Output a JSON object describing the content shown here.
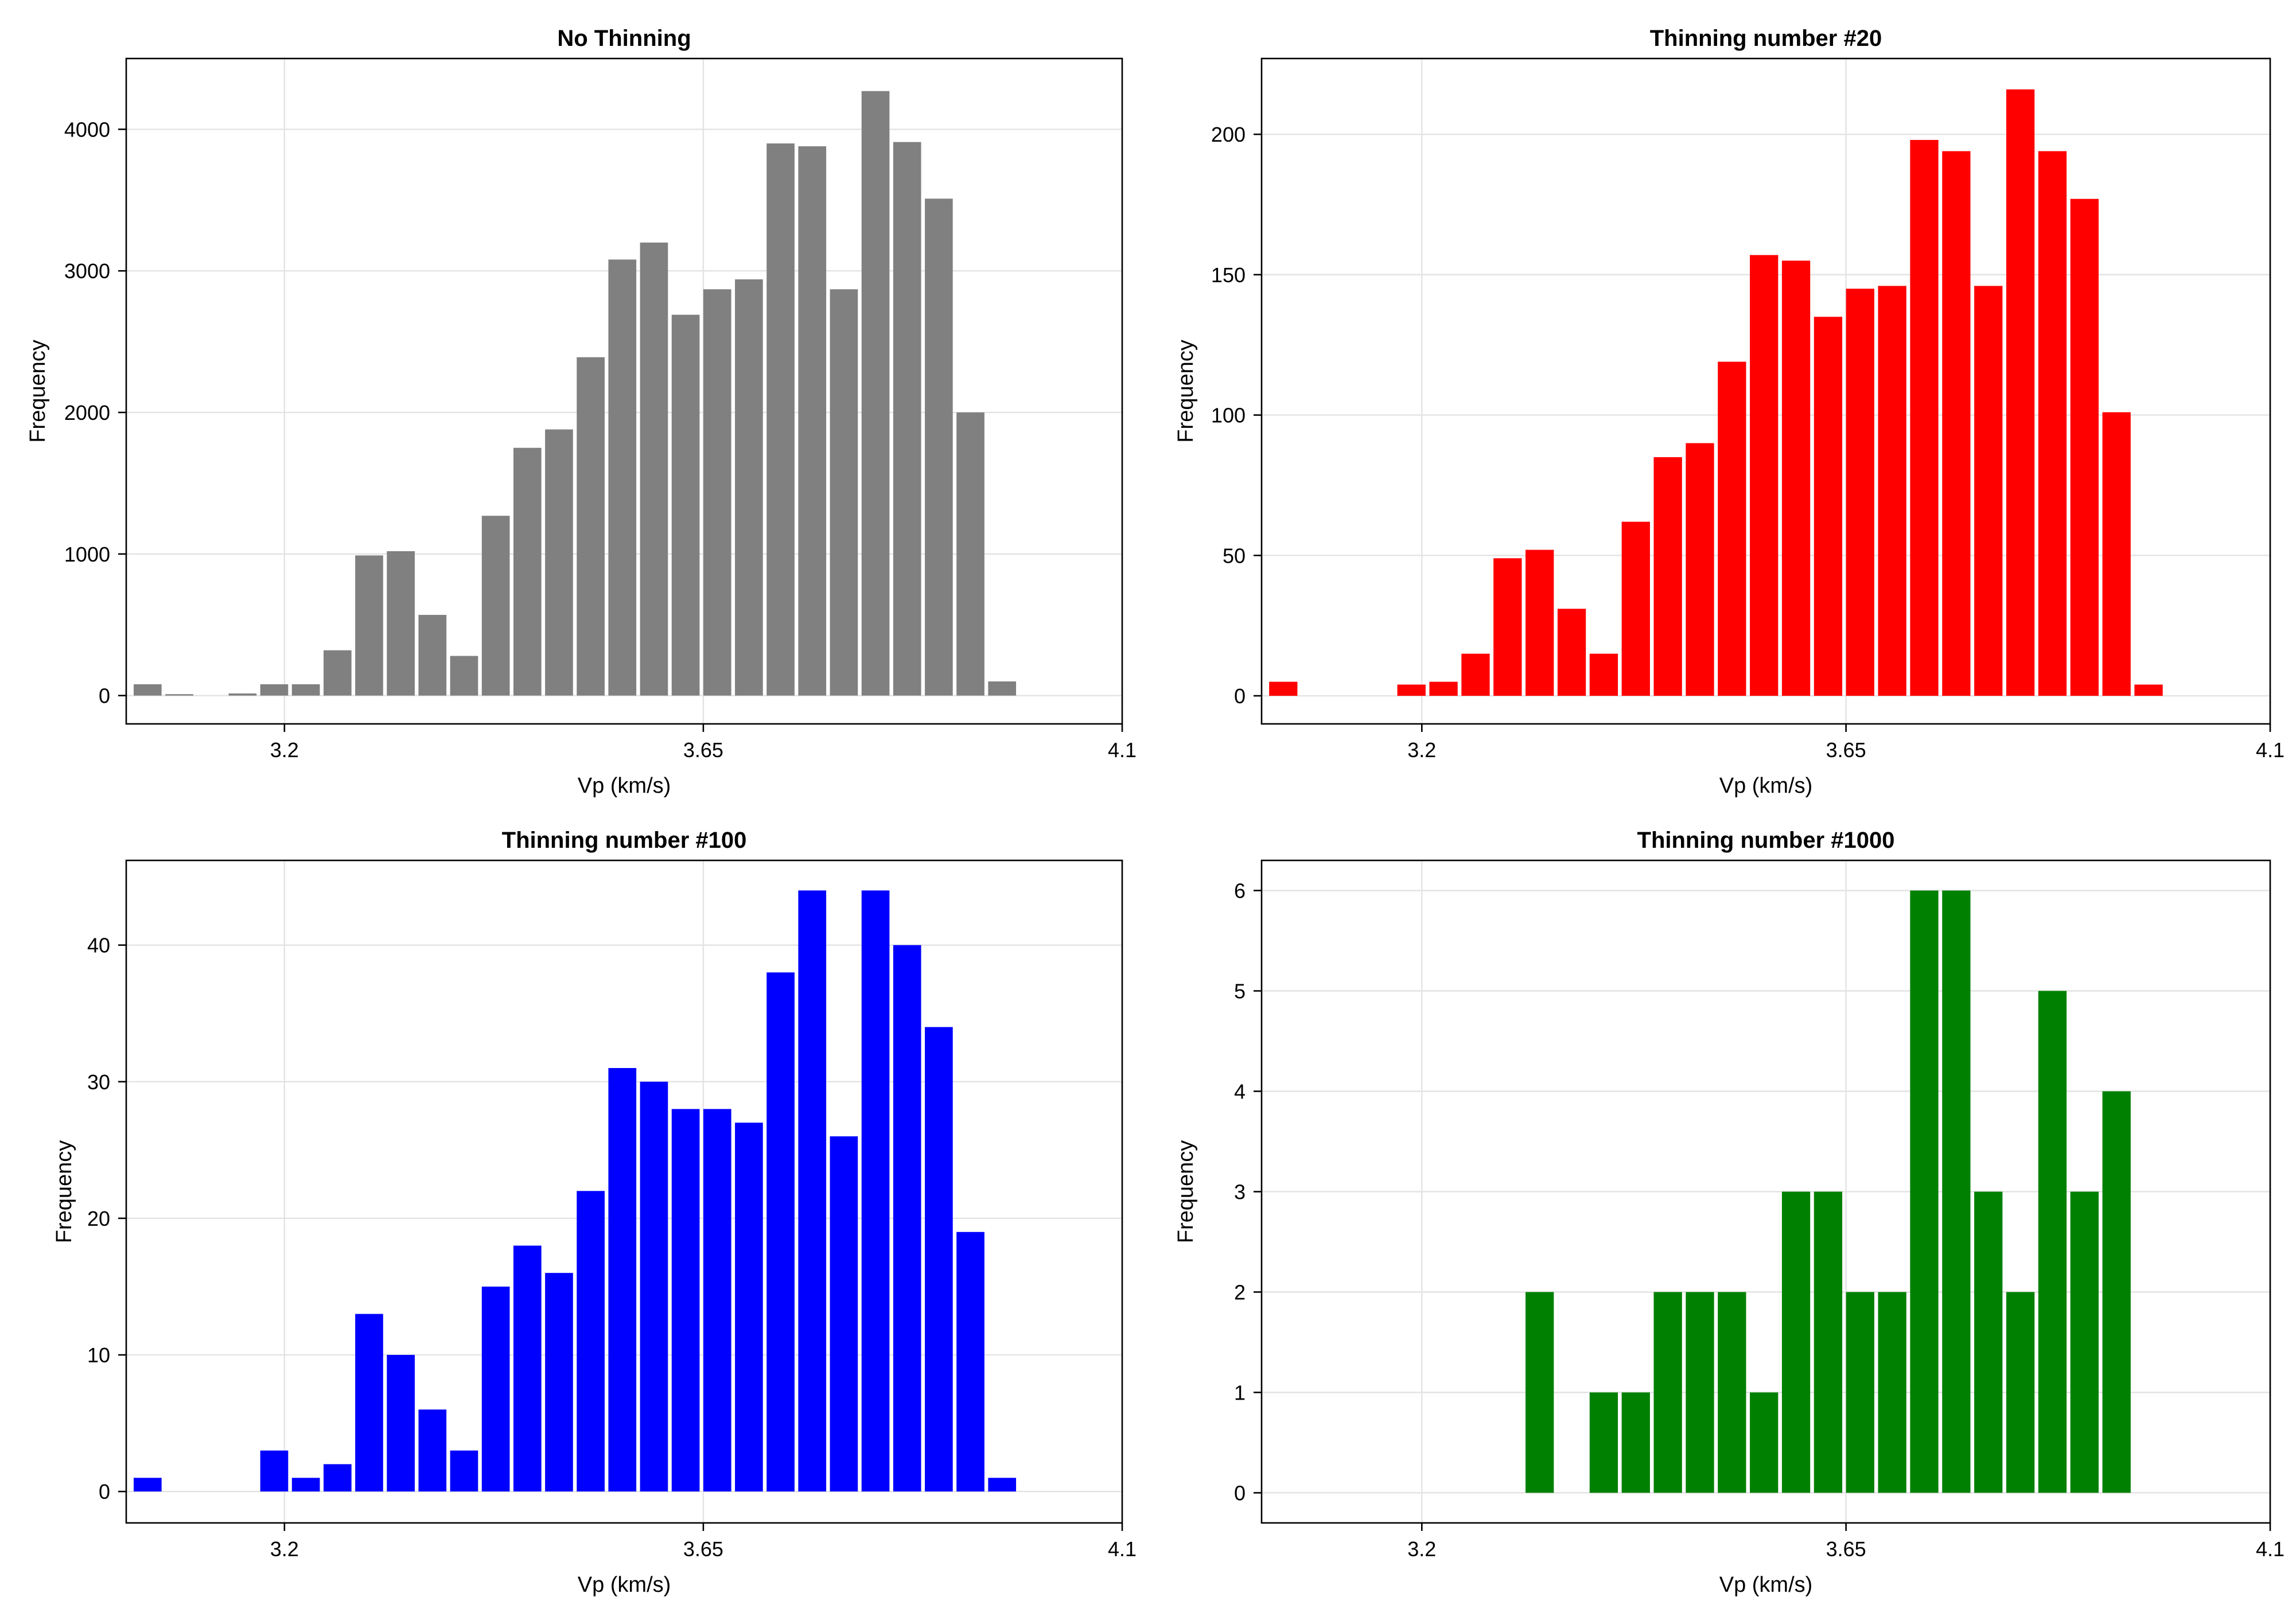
{
  "chart_data": [
    {
      "type": "bar",
      "title": "No Thinning",
      "xlabel": "Vp (km/s)",
      "ylabel": "Frequency",
      "color": "#808080",
      "xlim": [
        3.03,
        4.1
      ],
      "ylim": [
        -200,
        4500
      ],
      "xticks": [
        3.2,
        3.65,
        4.1
      ],
      "xtick_labels": [
        "3.2",
        "3.65",
        "4.1"
      ],
      "yticks": [
        0,
        1000,
        2000,
        3000,
        4000
      ],
      "ytick_labels": [
        "0",
        "1000",
        "2000",
        "3000",
        "4000"
      ],
      "x": [
        3.053,
        3.087,
        3.121,
        3.155,
        3.189,
        3.223,
        3.257,
        3.291,
        3.325,
        3.359,
        3.393,
        3.427,
        3.461,
        3.495,
        3.529,
        3.563,
        3.597,
        3.631,
        3.665,
        3.699,
        3.733,
        3.767,
        3.801,
        3.835,
        3.869,
        3.903,
        3.937,
        3.971,
        4.005,
        4.039
      ],
      "values": [
        80,
        10,
        0,
        15,
        80,
        80,
        320,
        990,
        1020,
        570,
        280,
        1270,
        1750,
        1880,
        2390,
        3080,
        3200,
        2690,
        2870,
        2940,
        3900,
        3880,
        2870,
        4270,
        3910,
        3510,
        2000,
        100,
        0,
        0
      ]
    },
    {
      "type": "bar",
      "title": "Thinning number #20",
      "xlabel": "Vp (km/s)",
      "ylabel": "Frequency",
      "color": "#ff0000",
      "xlim": [
        3.03,
        4.1
      ],
      "ylim": [
        -10,
        227
      ],
      "xticks": [
        3.2,
        3.65,
        4.1
      ],
      "xtick_labels": [
        "3.2",
        "3.65",
        "4.1"
      ],
      "yticks": [
        0,
        50,
        100,
        150,
        200
      ],
      "ytick_labels": [
        "0",
        "50",
        "100",
        "150",
        "200"
      ],
      "x": [
        3.053,
        3.087,
        3.121,
        3.155,
        3.189,
        3.223,
        3.257,
        3.291,
        3.325,
        3.359,
        3.393,
        3.427,
        3.461,
        3.495,
        3.529,
        3.563,
        3.597,
        3.631,
        3.665,
        3.699,
        3.733,
        3.767,
        3.801,
        3.835,
        3.869,
        3.903,
        3.937,
        3.971,
        4.005,
        4.039
      ],
      "values": [
        5,
        0,
        0,
        0,
        4,
        5,
        15,
        49,
        52,
        31,
        15,
        62,
        85,
        90,
        119,
        157,
        155,
        135,
        145,
        146,
        198,
        194,
        146,
        216,
        194,
        177,
        101,
        4,
        0,
        0
      ]
    },
    {
      "type": "bar",
      "title": "Thinning number #100",
      "xlabel": "Vp (km/s)",
      "ylabel": "Frequency",
      "color": "#0000ff",
      "xlim": [
        3.03,
        4.1
      ],
      "ylim": [
        -2.3,
        46.2
      ],
      "xticks": [
        3.2,
        3.65,
        4.1
      ],
      "xtick_labels": [
        "3.2",
        "3.65",
        "4.1"
      ],
      "yticks": [
        0,
        10,
        20,
        30,
        40
      ],
      "ytick_labels": [
        "0",
        "10",
        "20",
        "30",
        "40"
      ],
      "x": [
        3.053,
        3.087,
        3.121,
        3.155,
        3.189,
        3.223,
        3.257,
        3.291,
        3.325,
        3.359,
        3.393,
        3.427,
        3.461,
        3.495,
        3.529,
        3.563,
        3.597,
        3.631,
        3.665,
        3.699,
        3.733,
        3.767,
        3.801,
        3.835,
        3.869,
        3.903,
        3.937,
        3.971,
        4.005,
        4.039
      ],
      "values": [
        1,
        0,
        0,
        0,
        3,
        1,
        2,
        13,
        10,
        6,
        3,
        15,
        18,
        16,
        22,
        31,
        30,
        28,
        28,
        27,
        38,
        44,
        26,
        44,
        40,
        34,
        19,
        1,
        0,
        0
      ]
    },
    {
      "type": "bar",
      "title": "Thinning number #1000",
      "xlabel": "Vp (km/s)",
      "ylabel": "Frequency",
      "color": "#008000",
      "xlim": [
        3.03,
        4.1
      ],
      "ylim": [
        -0.3,
        6.3
      ],
      "xticks": [
        3.2,
        3.65,
        4.1
      ],
      "xtick_labels": [
        "3.2",
        "3.65",
        "4.1"
      ],
      "yticks": [
        0,
        1,
        2,
        3,
        4,
        5,
        6
      ],
      "ytick_labels": [
        "0",
        "1",
        "2",
        "3",
        "4",
        "5",
        "6"
      ],
      "x": [
        3.053,
        3.087,
        3.121,
        3.155,
        3.189,
        3.223,
        3.257,
        3.291,
        3.325,
        3.359,
        3.393,
        3.427,
        3.461,
        3.495,
        3.529,
        3.563,
        3.597,
        3.631,
        3.665,
        3.699,
        3.733,
        3.767,
        3.801,
        3.835,
        3.869,
        3.903,
        3.937,
        3.971,
        4.005,
        4.039
      ],
      "values": [
        0,
        0,
        0,
        0,
        0,
        0,
        0,
        0,
        2,
        0,
        1,
        1,
        2,
        2,
        2,
        1,
        3,
        3,
        2,
        2,
        6,
        6,
        3,
        2,
        5,
        3,
        4,
        0,
        0,
        0
      ]
    }
  ]
}
